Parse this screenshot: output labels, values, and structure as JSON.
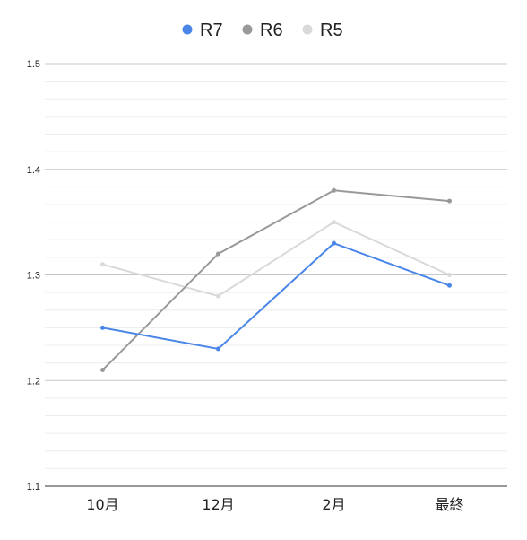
{
  "chart_data": {
    "type": "line",
    "categories": [
      "10月",
      "12月",
      "2月",
      "最終"
    ],
    "series": [
      {
        "name": "R7",
        "color": "#4a86e8",
        "values": [
          1.25,
          1.23,
          1.33,
          1.29
        ]
      },
      {
        "name": "R6",
        "color": "#999999",
        "values": [
          1.21,
          1.32,
          1.38,
          1.37
        ]
      },
      {
        "name": "R5",
        "color": "#d9d9d9",
        "values": [
          1.31,
          1.28,
          1.35,
          1.3
        ]
      }
    ],
    "y_ticks": [
      "1.1",
      "1.2",
      "1.3",
      "1.4",
      "1.5"
    ],
    "ylim": [
      1.1,
      1.5
    ],
    "grid": true,
    "minor_gridlines_per_major": 6,
    "legend_position": "top"
  }
}
